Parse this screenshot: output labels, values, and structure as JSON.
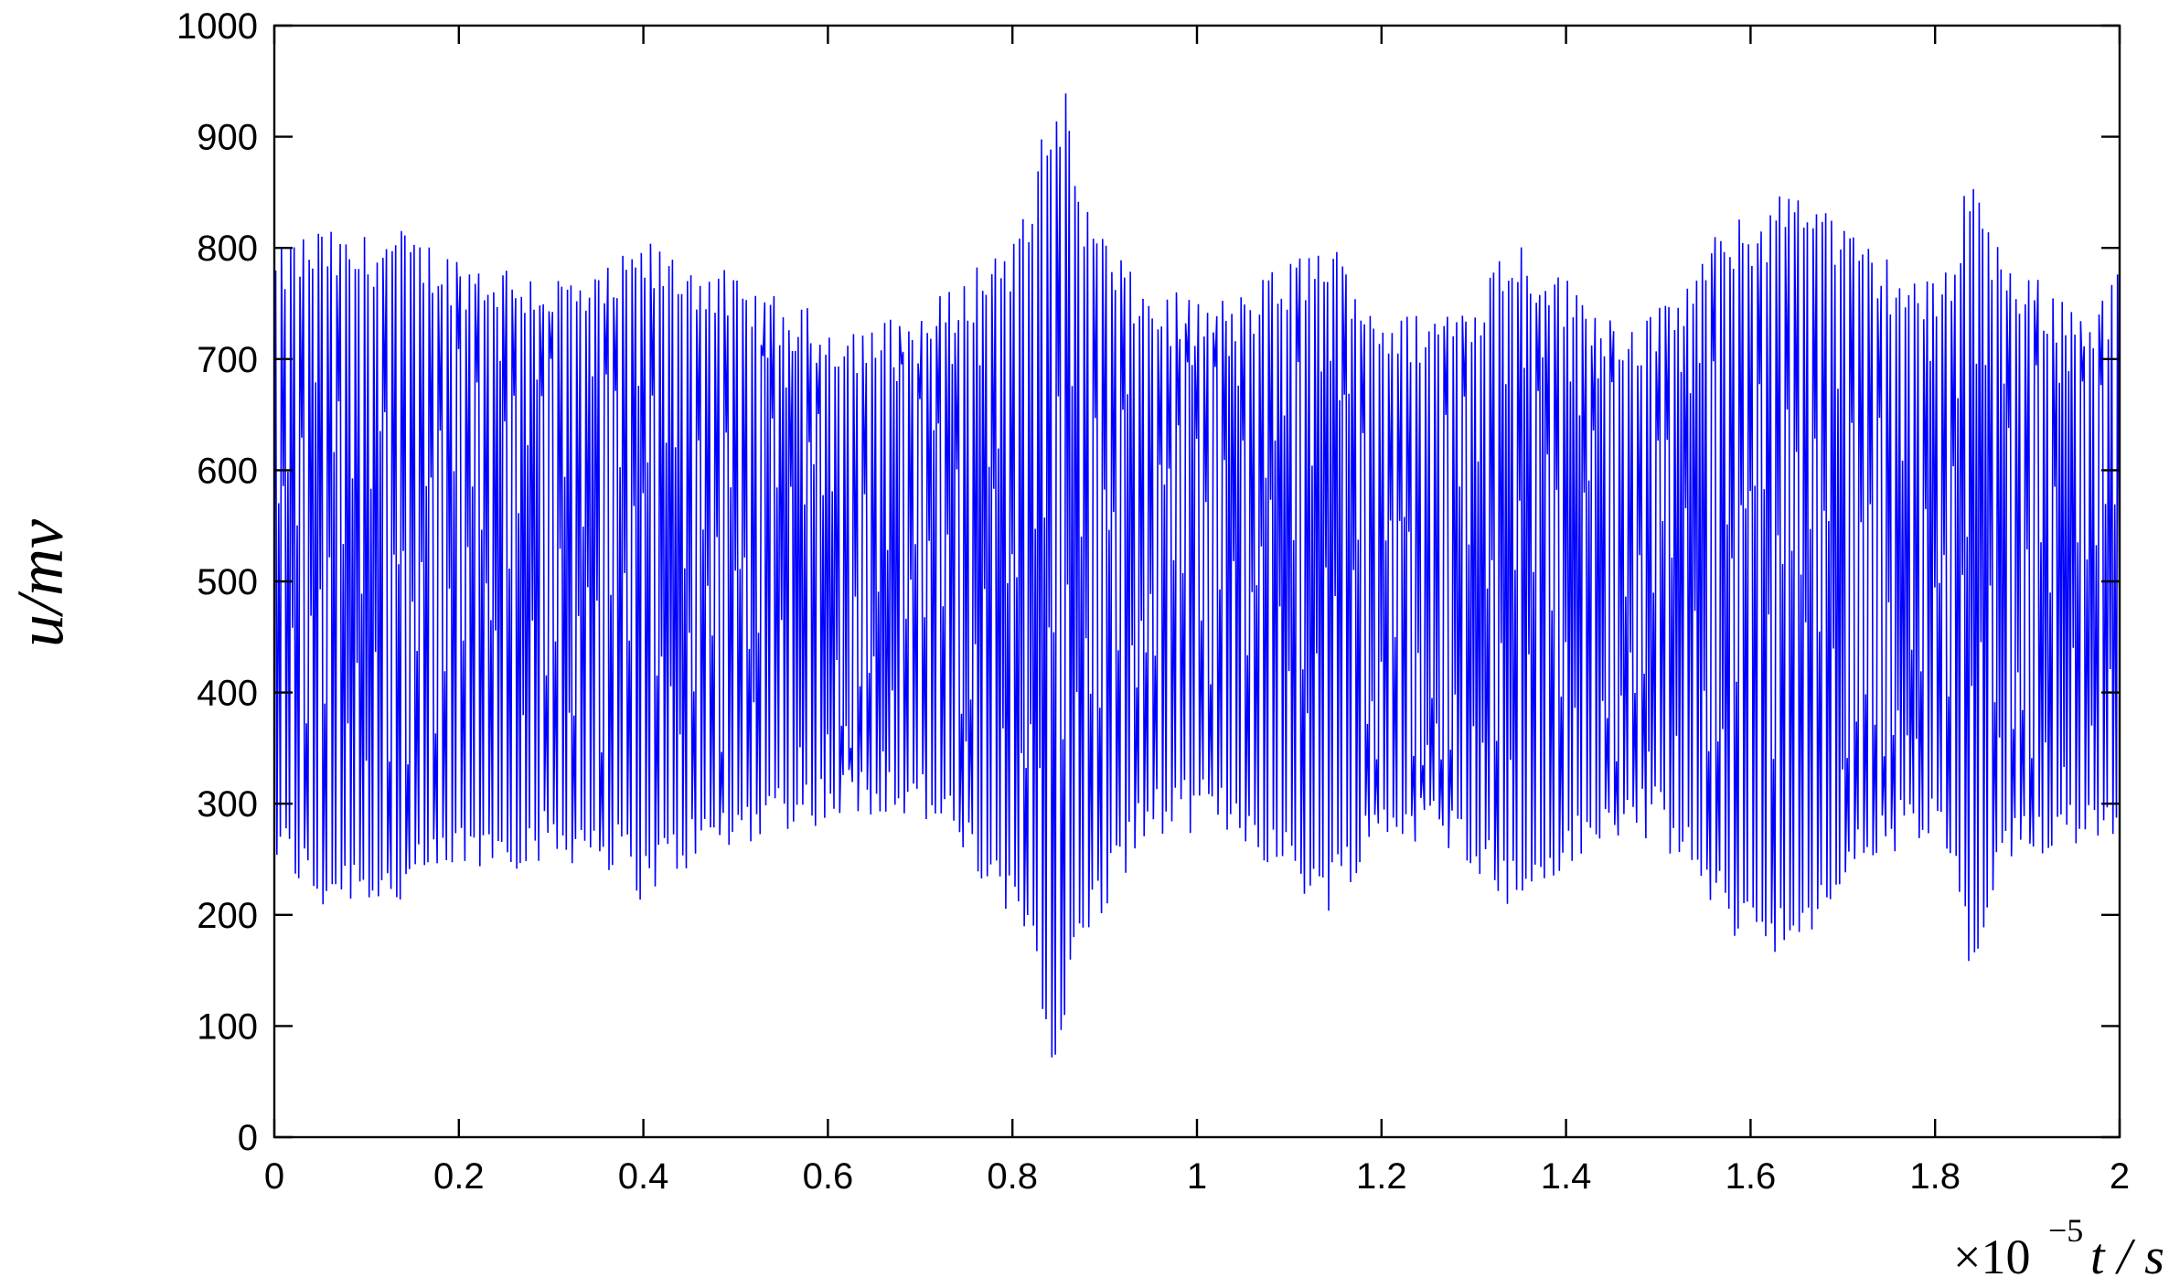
{
  "chart_data": {
    "type": "line",
    "title": "",
    "xlabel": "t / s",
    "ylabel": "u/mv",
    "x_exponent_label": "×10",
    "x_exponent": "−5",
    "xlim": [
      0,
      2
    ],
    "ylim": [
      0,
      1000
    ],
    "xticks": [
      "0",
      "0.2",
      "0.4",
      "0.6",
      "0.8",
      "1",
      "1.2",
      "1.4",
      "1.6",
      "1.8",
      "2"
    ],
    "yticks": [
      "0",
      "100",
      "200",
      "300",
      "400",
      "500",
      "600",
      "700",
      "800",
      "900",
      "1000"
    ],
    "line_color": "#0000ff",
    "baseline": 520,
    "cycles": 400,
    "envelope": {
      "x": [
        0.0,
        0.02,
        0.05,
        0.08,
        0.1,
        0.13,
        0.16,
        0.2,
        0.25,
        0.3,
        0.35,
        0.38,
        0.4,
        0.42,
        0.45,
        0.48,
        0.5,
        0.52,
        0.55,
        0.6,
        0.65,
        0.7,
        0.75,
        0.78,
        0.8,
        0.82,
        0.84,
        0.85,
        0.86,
        0.87,
        0.89,
        0.91,
        0.93,
        0.95,
        0.98,
        1.0,
        1.05,
        1.08,
        1.11,
        1.14,
        1.16,
        1.18,
        1.2,
        1.22,
        1.25,
        1.3,
        1.33,
        1.35,
        1.38,
        1.4,
        1.43,
        1.45,
        1.48,
        1.5,
        1.53,
        1.56,
        1.58,
        1.6,
        1.62,
        1.64,
        1.66,
        1.68,
        1.7,
        1.73,
        1.76,
        1.8,
        1.82,
        1.84,
        1.86,
        1.88,
        1.91,
        1.94,
        1.97,
        2.0
      ],
      "upper": [
        790,
        805,
        815,
        805,
        808,
        815,
        805,
        790,
        785,
        775,
        770,
        790,
        805,
        795,
        790,
        780,
        768,
        760,
        750,
        735,
        730,
        740,
        770,
        800,
        805,
        835,
        940,
        900,
        960,
        860,
        820,
        800,
        770,
        760,
        755,
        750,
        755,
        775,
        790,
        805,
        790,
        765,
        745,
        735,
        740,
        755,
        800,
        805,
        785,
        770,
        755,
        740,
        735,
        740,
        770,
        805,
        820,
        825,
        830,
        855,
        860,
        840,
        815,
        800,
        780,
        765,
        795,
        885,
        810,
        790,
        770,
        755,
        745,
        775
      ],
      "lower": [
        245,
        235,
        205,
        215,
        215,
        205,
        220,
        240,
        245,
        250,
        250,
        235,
        215,
        230,
        245,
        255,
        260,
        270,
        280,
        285,
        295,
        290,
        250,
        210,
        190,
        185,
        80,
        40,
        110,
        170,
        190,
        220,
        255,
        270,
        275,
        280,
        270,
        245,
        225,
        205,
        225,
        250,
        265,
        270,
        265,
        250,
        215,
        205,
        225,
        240,
        255,
        265,
        275,
        270,
        240,
        205,
        185,
        180,
        175,
        165,
        160,
        195,
        225,
        245,
        260,
        265,
        235,
        130,
        200,
        240,
        255,
        265,
        270,
        280
      ]
    }
  }
}
